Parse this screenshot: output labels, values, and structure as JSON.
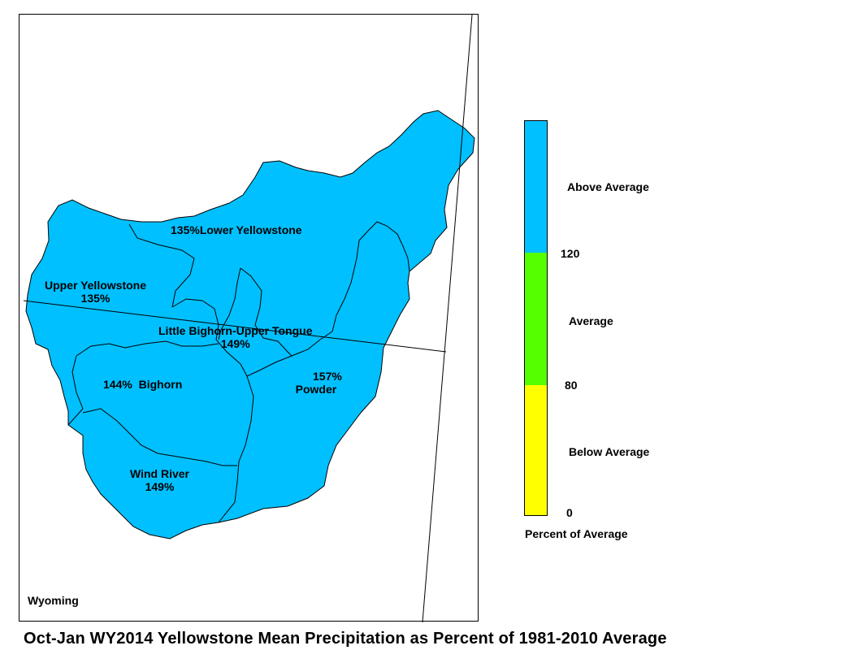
{
  "title": "Oct-Jan WY2014 Yellowstone Mean Precipitation as Percent of 1981-2010 Average",
  "state_label": "Wyoming",
  "basins": [
    {
      "name": "Lower Yellowstone",
      "percent": "135%",
      "category": "Above Average"
    },
    {
      "name": "Upper Yellowstone",
      "percent": "135%",
      "category": "Above Average"
    },
    {
      "name": "Little Bighorn-Upper Tongue",
      "percent": "149%",
      "category": "Above Average"
    },
    {
      "name": "Bighorn",
      "percent": "144%",
      "category": "Above Average"
    },
    {
      "name": "Powder",
      "percent": "157%",
      "category": "Above Average"
    },
    {
      "name": "Wind River",
      "percent": "149%",
      "category": "Above Average"
    }
  ],
  "legend": {
    "title": "Percent of Average",
    "categories": [
      {
        "label": "Above Average",
        "color": "#00c0ff",
        "range": [
          120,
          null
        ]
      },
      {
        "label": "Average",
        "color": "#55ff00",
        "range": [
          80,
          120
        ]
      },
      {
        "label": "Below Average",
        "color": "#ffff00",
        "range": [
          0,
          80
        ]
      }
    ],
    "ticks": [
      "120",
      "80",
      "0"
    ]
  },
  "colors": {
    "basin_fill": "#00c0ff",
    "boundary": "#000000",
    "background": "#ffffff"
  }
}
